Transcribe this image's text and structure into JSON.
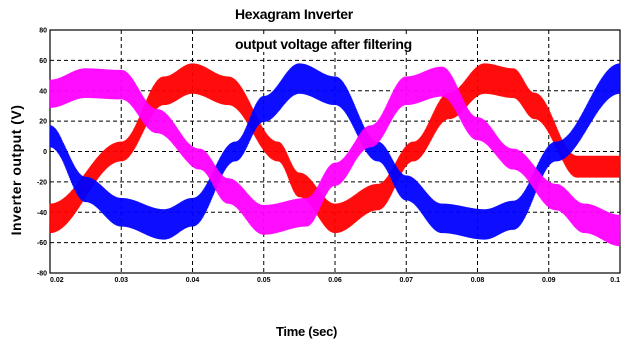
{
  "chart_data": {
    "type": "line",
    "title": [
      "Hexagram Inverter",
      "output voltage after filtering"
    ],
    "xlabel": "Time (sec)",
    "ylabel": "Inverter output (V)",
    "xlim": [
      0.02,
      0.1
    ],
    "ylim": [
      -80,
      80
    ],
    "xticks": [
      0.02,
      0.03,
      0.04,
      0.05,
      0.06,
      0.07,
      0.08,
      0.09,
      0.1
    ],
    "xtick_labels": [
      "0.02",
      "0.03",
      "0.04",
      "0.05",
      "0.06",
      "0.07",
      "0.08",
      "0.09",
      "0.1"
    ],
    "yticks": [
      80,
      60,
      40,
      20,
      0,
      -20,
      -40,
      -60,
      -80
    ],
    "ytick_labels": [
      "80",
      "60",
      "40",
      "20",
      "0",
      "-20",
      "-40",
      "-60",
      "-80"
    ],
    "grid": true,
    "series": [
      {
        "color": "#ff0000",
        "frequency_hz": 30.3,
        "amplitude": 48,
        "ripple": 10,
        "x": [
          0.02,
          0.03,
          0.036,
          0.04,
          0.045,
          0.052,
          0.055,
          0.06,
          0.066,
          0.071,
          0.076,
          0.081,
          0.085,
          0.088,
          0.094
        ],
        "values": [
          -44,
          0,
          40,
          48,
          40,
          0,
          -22,
          -44,
          -30,
          0,
          30,
          48,
          45,
          30,
          -10
        ]
      },
      {
        "color": "#0000ff",
        "frequency_hz": 30.3,
        "amplitude": 48,
        "ripple": 10,
        "x": [
          0.02,
          0.025,
          0.03,
          0.036,
          0.04,
          0.046,
          0.05,
          0.055,
          0.06,
          0.066,
          0.07,
          0.075,
          0.081,
          0.085,
          0.091,
          0.1
        ],
        "values": [
          10,
          -25,
          -40,
          -48,
          -40,
          0,
          28,
          48,
          40,
          0,
          -24,
          -44,
          -48,
          -42,
          0,
          48
        ]
      },
      {
        "color": "#ff00ff",
        "frequency_hz": 30.3,
        "amplitude": 48,
        "ripple": 10,
        "x": [
          0.02,
          0.025,
          0.03,
          0.035,
          0.041,
          0.045,
          0.05,
          0.056,
          0.06,
          0.065,
          0.07,
          0.075,
          0.08,
          0.085,
          0.091,
          0.095,
          0.1
        ],
        "values": [
          38,
          45,
          44,
          20,
          -5,
          -26,
          -45,
          -40,
          -15,
          10,
          40,
          46,
          15,
          -5,
          -30,
          -44,
          -52
        ]
      }
    ]
  }
}
